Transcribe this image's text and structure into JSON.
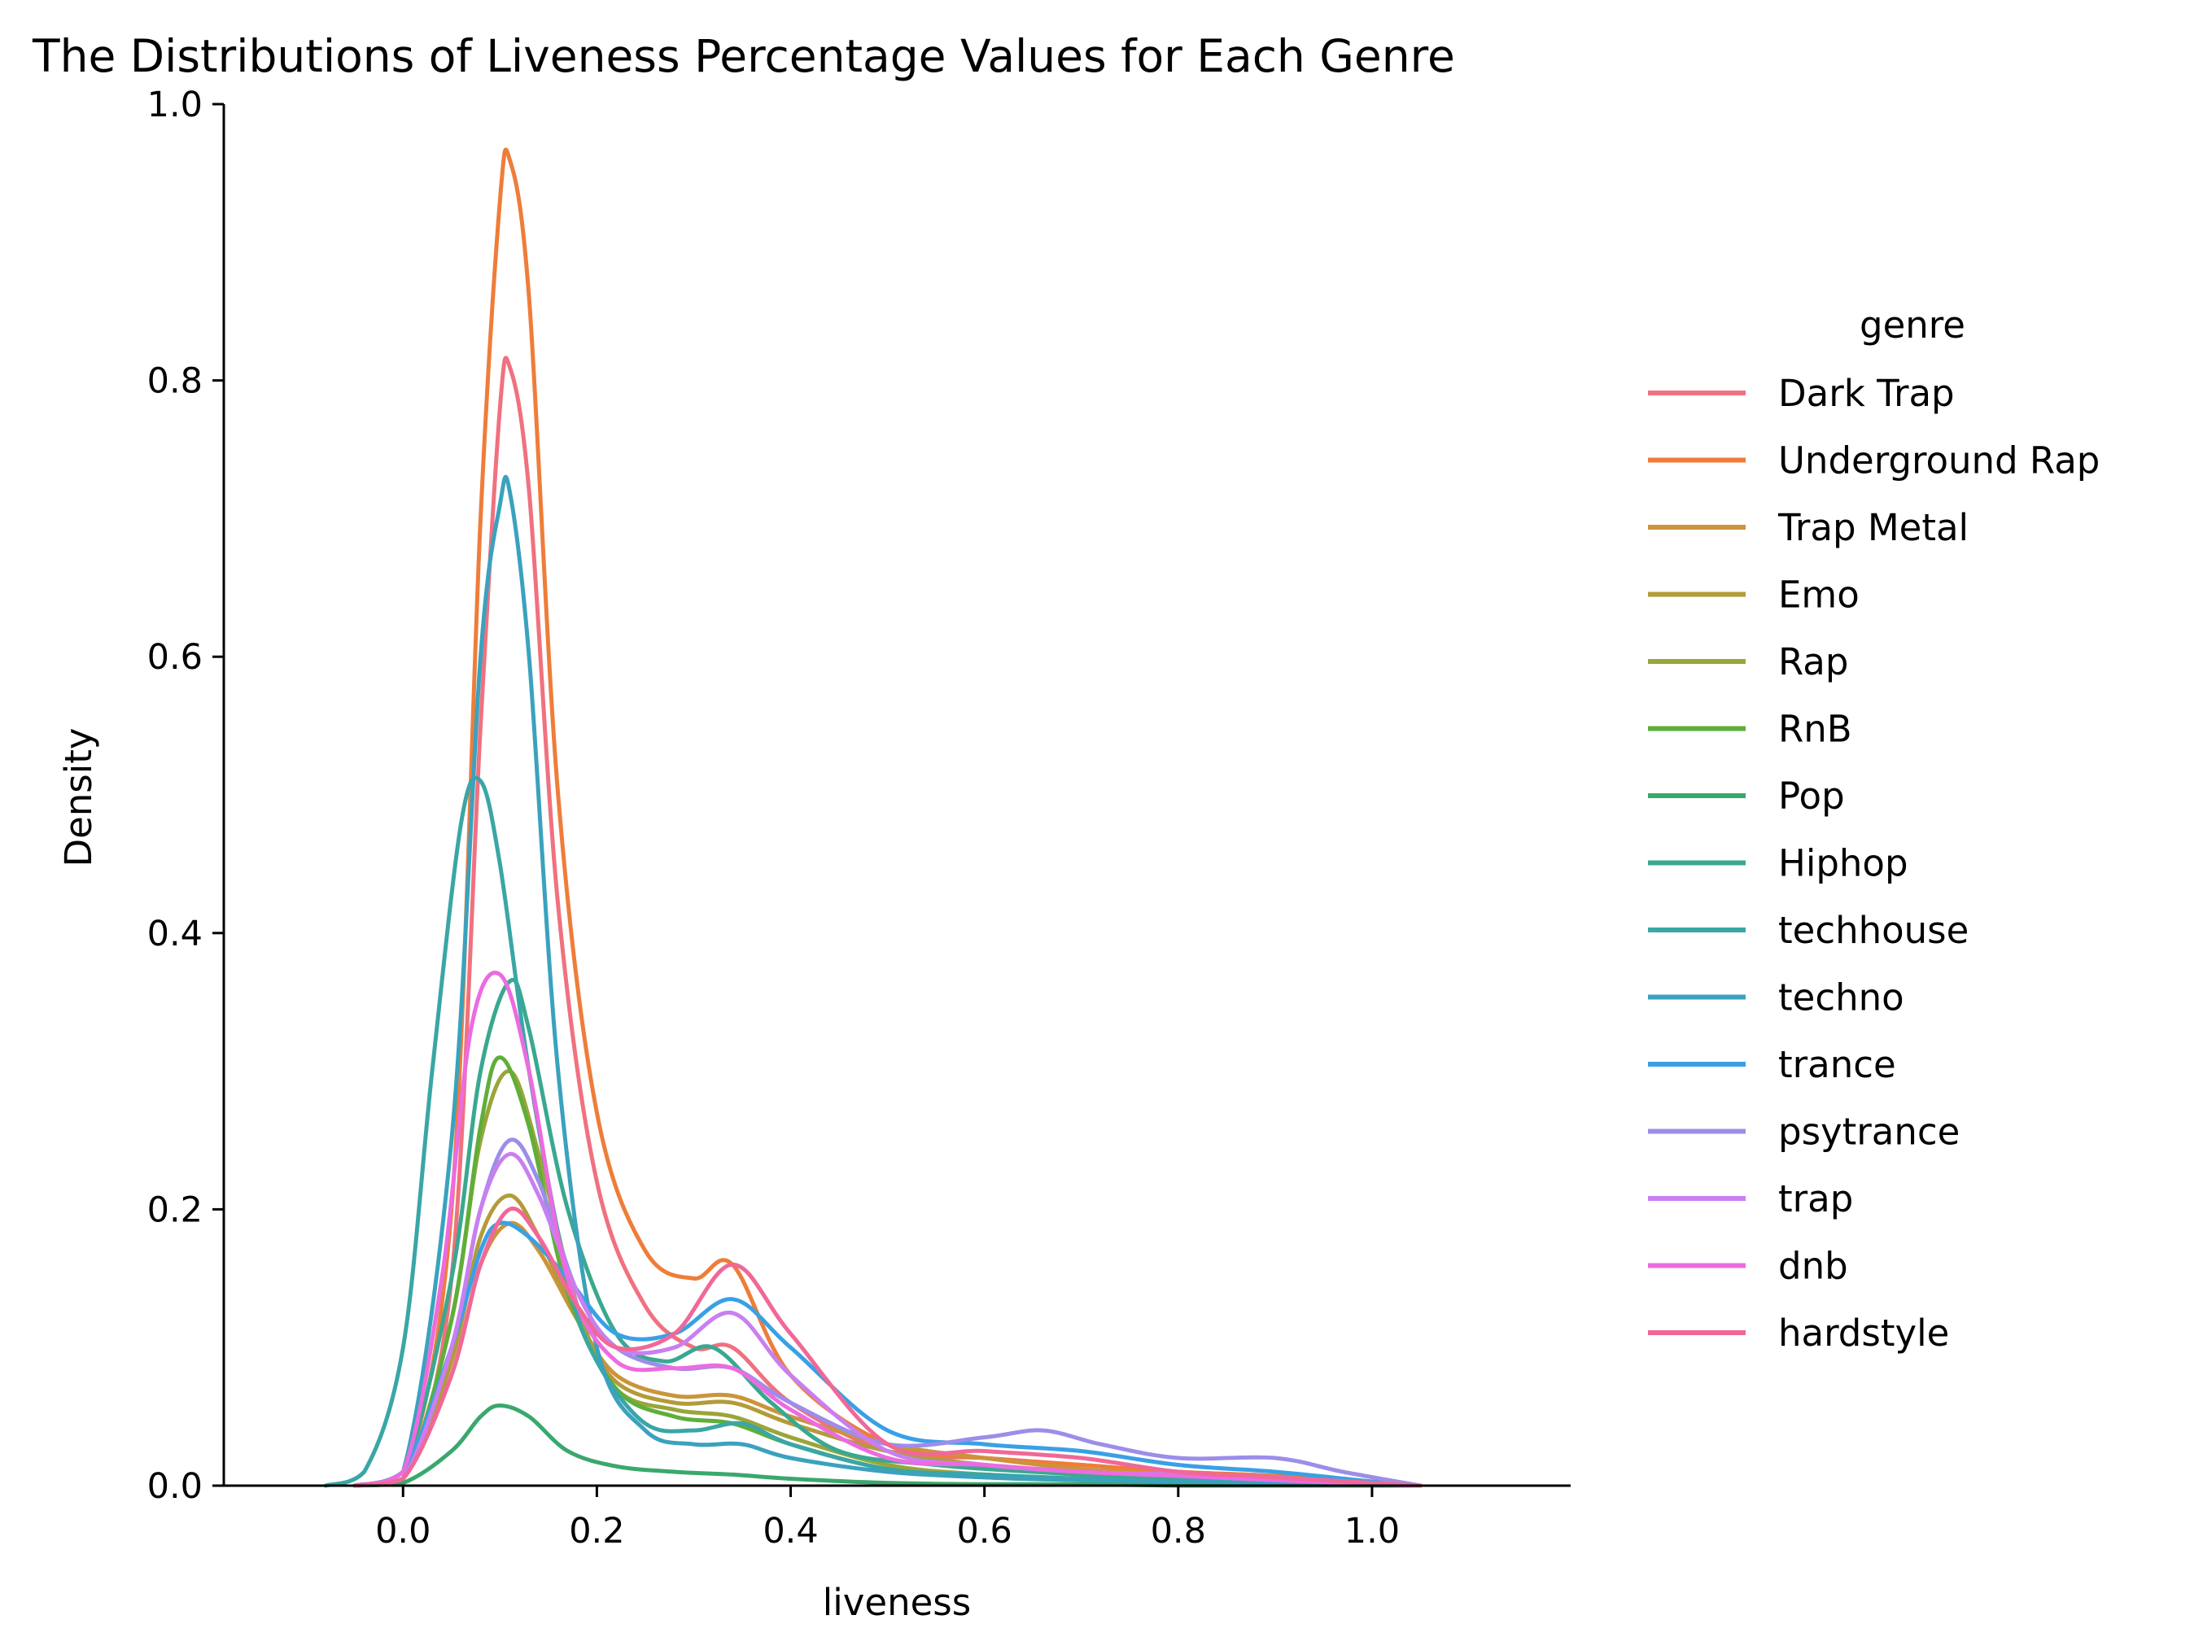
{
  "chart_data": {
    "type": "line",
    "title": "The Distributions of Liveness Percentage Values for Each Genre",
    "xlabel": "liveness",
    "ylabel": "Density",
    "xlim": [
      -0.185,
      1.205
    ],
    "ylim": [
      0,
      1.0
    ],
    "xticks": [
      0.0,
      0.2,
      0.4,
      0.6,
      0.8,
      1.0
    ],
    "xtick_labels": [
      "0.0",
      "0.2",
      "0.4",
      "0.6",
      "0.8",
      "1.0"
    ],
    "yticks": [
      0.0,
      0.2,
      0.4,
      0.6,
      0.8,
      1.0
    ],
    "ytick_labels": [
      "0.0",
      "0.2",
      "0.4",
      "0.6",
      "0.8",
      "1.0"
    ],
    "grid": false,
    "legend": {
      "title": "genre",
      "position": "outside-right"
    },
    "series": [
      {
        "name": "Dark Trap",
        "color": "#f0717f",
        "x": [
          -0.05,
          0,
          0.05,
          0.08,
          0.1,
          0.11,
          0.13,
          0.16,
          0.2,
          0.25,
          0.3,
          0.34,
          0.4,
          0.5,
          0.6,
          0.7,
          0.8,
          0.9,
          1.0,
          1.05
        ],
        "y": [
          0,
          0.005,
          0.15,
          0.55,
          0.78,
          0.81,
          0.72,
          0.42,
          0.22,
          0.13,
          0.1,
          0.1,
          0.06,
          0.025,
          0.02,
          0.015,
          0.01,
          0.007,
          0.002,
          0
        ]
      },
      {
        "name": "Underground Rap",
        "color": "#ee7d3a",
        "x": [
          -0.05,
          0,
          0.05,
          0.08,
          0.1,
          0.11,
          0.13,
          0.16,
          0.2,
          0.25,
          0.3,
          0.34,
          0.4,
          0.5,
          0.6,
          0.7,
          0.8,
          0.9,
          1.0,
          1.05
        ],
        "y": [
          0,
          0.005,
          0.2,
          0.7,
          0.93,
          0.96,
          0.86,
          0.5,
          0.27,
          0.17,
          0.15,
          0.16,
          0.08,
          0.03,
          0.02,
          0.015,
          0.01,
          0.007,
          0.002,
          0
        ]
      },
      {
        "name": "Trap Metal",
        "color": "#cc943a",
        "x": [
          -0.05,
          0,
          0.05,
          0.08,
          0.11,
          0.14,
          0.18,
          0.22,
          0.28,
          0.34,
          0.4,
          0.5,
          0.6,
          0.7,
          0.8,
          0.9,
          1.0,
          1.05
        ],
        "y": [
          0,
          0.005,
          0.08,
          0.16,
          0.19,
          0.17,
          0.12,
          0.08,
          0.065,
          0.065,
          0.05,
          0.03,
          0.02,
          0.012,
          0.008,
          0.004,
          0.001,
          0
        ]
      },
      {
        "name": "Emo",
        "color": "#b39b3a",
        "x": [
          -0.05,
          0,
          0.05,
          0.08,
          0.11,
          0.14,
          0.18,
          0.22,
          0.28,
          0.34,
          0.4,
          0.5,
          0.6,
          0.7,
          0.8,
          0.9,
          1.0,
          1.05
        ],
        "y": [
          0,
          0.005,
          0.09,
          0.18,
          0.21,
          0.18,
          0.12,
          0.075,
          0.06,
          0.06,
          0.045,
          0.025,
          0.015,
          0.01,
          0.006,
          0.003,
          0.001,
          0
        ]
      },
      {
        "name": "Rap",
        "color": "#9aa53a",
        "x": [
          -0.05,
          0,
          0.05,
          0.08,
          0.11,
          0.14,
          0.18,
          0.22,
          0.28,
          0.34,
          0.4,
          0.5,
          0.6,
          0.7,
          0.8,
          0.9,
          1.0,
          1.05
        ],
        "y": [
          0,
          0.005,
          0.12,
          0.25,
          0.3,
          0.24,
          0.13,
          0.07,
          0.055,
          0.05,
          0.035,
          0.015,
          0.008,
          0.005,
          0.003,
          0.002,
          0.001,
          0
        ]
      },
      {
        "name": "RnB",
        "color": "#5fae3a",
        "x": [
          -0.05,
          0,
          0.05,
          0.08,
          0.1,
          0.13,
          0.17,
          0.22,
          0.28,
          0.34,
          0.4,
          0.5,
          0.6,
          0.7,
          0.8,
          0.9,
          1.0,
          1.05
        ],
        "y": [
          0,
          0.005,
          0.12,
          0.26,
          0.31,
          0.26,
          0.14,
          0.07,
          0.05,
          0.045,
          0.03,
          0.012,
          0.006,
          0.004,
          0.002,
          0.001,
          0,
          0
        ]
      },
      {
        "name": "Pop",
        "color": "#3aa86b",
        "x": [
          -0.05,
          0,
          0.05,
          0.08,
          0.1,
          0.13,
          0.17,
          0.22,
          0.28,
          0.34,
          0.4,
          0.5,
          0.6,
          0.7,
          0.8,
          0.9,
          1.0,
          1.05
        ],
        "y": [
          0,
          0.002,
          0.025,
          0.05,
          0.058,
          0.05,
          0.025,
          0.014,
          0.01,
          0.008,
          0.005,
          0.002,
          0.001,
          0.001,
          0,
          0,
          0,
          0
        ]
      },
      {
        "name": "Hiphop",
        "color": "#3aa891",
        "x": [
          -0.05,
          0,
          0.05,
          0.08,
          0.11,
          0.13,
          0.17,
          0.22,
          0.27,
          0.32,
          0.38,
          0.45,
          0.55,
          0.65,
          0.75,
          0.85,
          0.95,
          1.05
        ],
        "y": [
          0,
          0.01,
          0.15,
          0.3,
          0.365,
          0.33,
          0.2,
          0.11,
          0.09,
          0.1,
          0.06,
          0.025,
          0.015,
          0.01,
          0.006,
          0.004,
          0.001,
          0
        ]
      },
      {
        "name": "techhouse",
        "color": "#3aa6a5",
        "x": [
          -0.08,
          -0.04,
          0,
          0.03,
          0.06,
          0.08,
          0.1,
          0.13,
          0.17,
          0.2,
          0.25,
          0.3,
          0.35,
          0.4,
          0.5,
          0.6,
          0.7,
          0.8,
          0.9,
          1.0,
          1.05
        ],
        "y": [
          0,
          0.01,
          0.1,
          0.3,
          0.48,
          0.51,
          0.45,
          0.3,
          0.15,
          0.09,
          0.045,
          0.04,
          0.045,
          0.03,
          0.012,
          0.008,
          0.005,
          0.003,
          0.002,
          0.001,
          0
        ]
      },
      {
        "name": "techno",
        "color": "#3aa2be",
        "x": [
          -0.05,
          0,
          0.05,
          0.08,
          0.1,
          0.11,
          0.13,
          0.16,
          0.2,
          0.25,
          0.3,
          0.35,
          0.4,
          0.5,
          0.6,
          0.7,
          0.8,
          0.9,
          1.0,
          1.05
        ],
        "y": [
          0,
          0.01,
          0.25,
          0.6,
          0.71,
          0.72,
          0.6,
          0.3,
          0.1,
          0.04,
          0.03,
          0.03,
          0.02,
          0.01,
          0.006,
          0.004,
          0.003,
          0.002,
          0.001,
          0
        ]
      },
      {
        "name": "trance",
        "color": "#3aa0e6",
        "x": [
          -0.05,
          0,
          0.05,
          0.08,
          0.1,
          0.13,
          0.17,
          0.22,
          0.28,
          0.34,
          0.4,
          0.5,
          0.6,
          0.7,
          0.8,
          0.9,
          1.0,
          1.05
        ],
        "y": [
          0,
          0.01,
          0.1,
          0.17,
          0.19,
          0.18,
          0.15,
          0.11,
          0.11,
          0.135,
          0.1,
          0.04,
          0.03,
          0.025,
          0.015,
          0.01,
          0.003,
          0
        ]
      },
      {
        "name": "psytrance",
        "color": "#9c8ee8",
        "x": [
          -0.05,
          0,
          0.05,
          0.08,
          0.11,
          0.14,
          0.18,
          0.22,
          0.28,
          0.34,
          0.4,
          0.5,
          0.6,
          0.66,
          0.72,
          0.8,
          0.9,
          0.97,
          1.05
        ],
        "y": [
          0,
          0.005,
          0.1,
          0.2,
          0.25,
          0.22,
          0.14,
          0.1,
          0.085,
          0.085,
          0.06,
          0.03,
          0.035,
          0.04,
          0.03,
          0.02,
          0.02,
          0.01,
          0
        ]
      },
      {
        "name": "trap",
        "color": "#c97ff0",
        "x": [
          -0.05,
          0,
          0.05,
          0.08,
          0.11,
          0.14,
          0.18,
          0.22,
          0.28,
          0.34,
          0.4,
          0.5,
          0.6,
          0.7,
          0.8,
          0.9,
          1.0,
          1.05
        ],
        "y": [
          0,
          0.005,
          0.1,
          0.2,
          0.24,
          0.21,
          0.14,
          0.1,
          0.1,
          0.125,
          0.08,
          0.025,
          0.015,
          0.01,
          0.008,
          0.005,
          0.002,
          0
        ]
      },
      {
        "name": "dnb",
        "color": "#ec6be0",
        "x": [
          -0.05,
          0,
          0.04,
          0.07,
          0.1,
          0.13,
          0.17,
          0.22,
          0.28,
          0.34,
          0.4,
          0.5,
          0.6,
          0.7,
          0.8,
          0.9,
          1.0,
          1.05
        ],
        "y": [
          0,
          0.01,
          0.15,
          0.33,
          0.37,
          0.3,
          0.15,
          0.09,
          0.085,
          0.085,
          0.055,
          0.02,
          0.015,
          0.01,
          0.007,
          0.004,
          0.001,
          0
        ]
      },
      {
        "name": "hardstyle",
        "color": "#f06898",
        "x": [
          -0.05,
          0,
          0.05,
          0.08,
          0.11,
          0.14,
          0.18,
          0.22,
          0.28,
          0.34,
          0.4,
          0.5,
          0.6,
          0.7,
          0.8,
          0.9,
          1.0,
          1.05
        ],
        "y": [
          0,
          0.005,
          0.08,
          0.16,
          0.2,
          0.18,
          0.13,
          0.1,
          0.11,
          0.16,
          0.11,
          0.03,
          0.025,
          0.02,
          0.01,
          0.006,
          0.002,
          0
        ]
      }
    ]
  }
}
